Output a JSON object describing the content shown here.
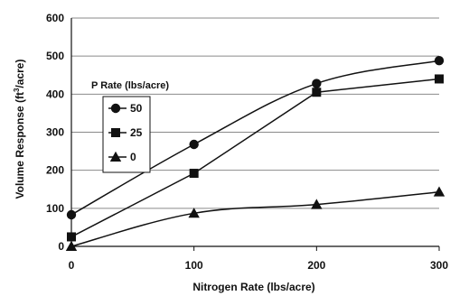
{
  "chart_data": {
    "type": "line",
    "title": "",
    "xlabel": "Nitrogen Rate  (lbs/acre)",
    "ylabel_prefix": "Volume Response (ft",
    "ylabel_superscript": "3",
    "ylabel_suffix": "/acre)",
    "xlim": [
      0,
      300
    ],
    "ylim": [
      0,
      600
    ],
    "xticks": [
      0,
      100,
      200,
      300
    ],
    "yticks": [
      0,
      100,
      200,
      300,
      400,
      500,
      600
    ],
    "grid": "horizontal",
    "legend": {
      "title": "P Rate (lbs/acre)",
      "placement": "upper-left-inside"
    },
    "series": [
      {
        "name": "50",
        "marker": "circle",
        "x": [
          0,
          100,
          200,
          300
        ],
        "y": [
          83,
          268,
          428,
          488
        ],
        "curve": true
      },
      {
        "name": "25",
        "marker": "square",
        "x": [
          0,
          100,
          200,
          300
        ],
        "y": [
          25,
          192,
          405,
          440
        ],
        "curve": false
      },
      {
        "name": "0",
        "marker": "triangle",
        "x": [
          0,
          100,
          200,
          300
        ],
        "y": [
          0,
          87,
          110,
          143
        ],
        "curve": true
      }
    ]
  },
  "colors": {
    "line": "#111111",
    "grid": "#8a8a8a",
    "background": "#ffffff"
  }
}
